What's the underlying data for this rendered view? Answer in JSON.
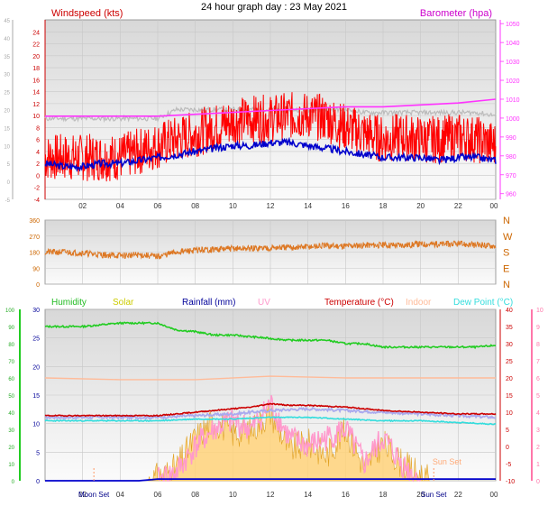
{
  "page_title": "24 hour graph day : 23 May 2021",
  "chart_data": [
    {
      "type": "line",
      "xlabel": "",
      "x_ticks": [
        "02",
        "04",
        "06",
        "08",
        "10",
        "12",
        "14",
        "16",
        "18",
        "20",
        "22",
        "00"
      ],
      "y_left_label": "Windspeed (kts)",
      "y_left_ticks": [
        "-4",
        "-2",
        "0",
        "2",
        "4",
        "6",
        "8",
        "10",
        "12",
        "14",
        "16",
        "18",
        "20",
        "22",
        "24"
      ],
      "y_left_outer_ticks": [
        "-5",
        "0",
        "5",
        "10",
        "15",
        "20",
        "25",
        "30",
        "35",
        "40",
        "45"
      ],
      "ylim_left": [
        -4,
        26
      ],
      "y_right_label": "Barometer (hpa)",
      "y_right_ticks": [
        "960",
        "970",
        "980",
        "990",
        "1000",
        "1010",
        "1020",
        "1030",
        "1040",
        "1050"
      ],
      "ylim_right": [
        957,
        1052
      ],
      "grid": true,
      "series": [
        {
          "name": "Windspeed (kts)",
          "color": "#ff0000",
          "axis": "left",
          "x": [
            0,
            1,
            2,
            3,
            4,
            5,
            6,
            7,
            8,
            9,
            10,
            11,
            12,
            13,
            14,
            15,
            16,
            17,
            18,
            19,
            20,
            21,
            22,
            23,
            24
          ],
          "values": [
            3,
            3,
            3,
            3,
            3,
            4,
            5,
            6,
            7,
            8,
            9,
            9.5,
            9.5,
            10,
            10,
            9.5,
            8,
            7,
            6,
            6.5,
            6,
            6,
            6.5,
            6,
            5
          ]
        },
        {
          "name": "",
          "color": "#bbbbbb",
          "axis": "left",
          "x": [
            0,
            1,
            2,
            3,
            4,
            5,
            6,
            7,
            8,
            9,
            10,
            11,
            12,
            13,
            14,
            15,
            16,
            17,
            18,
            19,
            20,
            21,
            22,
            23,
            24
          ],
          "values": [
            9.5,
            9.5,
            9.5,
            9.5,
            9.5,
            9.5,
            9.5,
            11,
            11,
            11,
            11,
            11,
            11,
            11,
            11,
            11,
            11,
            10.5,
            10.5,
            10.5,
            10.5,
            10.5,
            10.5,
            10.5,
            10
          ]
        },
        {
          "name": "",
          "color": "#0000cc",
          "axis": "left",
          "x": [
            0,
            1,
            2,
            3,
            4,
            5,
            6,
            7,
            8,
            9,
            10,
            11,
            12,
            13,
            14,
            15,
            16,
            17,
            18,
            19,
            20,
            21,
            22,
            23,
            24
          ],
          "values": [
            2,
            1.5,
            1.5,
            2,
            2,
            2.5,
            3,
            3.5,
            4,
            4.5,
            5,
            5,
            5.5,
            5.5,
            5,
            4.5,
            4,
            3.5,
            3,
            3,
            3,
            2.5,
            3,
            3,
            2.5
          ]
        },
        {
          "name": "Barometer (hpa)",
          "color": "#ff33ff",
          "axis": "right",
          "x": [
            0,
            2,
            4,
            6,
            8,
            10,
            12,
            14,
            16,
            18,
            20,
            22,
            24
          ],
          "values": [
            1001,
            1001,
            1001,
            1001,
            1002,
            1003,
            1004,
            1005,
            1006,
            1006,
            1007,
            1008,
            1010
          ]
        }
      ]
    },
    {
      "type": "line",
      "x_ticks": [
        "02",
        "04",
        "06",
        "08",
        "10",
        "12",
        "14",
        "16",
        "18",
        "20",
        "22",
        "00"
      ],
      "y_left_ticks": [
        "0",
        "90",
        "180",
        "270",
        "360"
      ],
      "ylim": [
        0,
        360
      ],
      "y_right_labels": [
        "N",
        "W",
        "S",
        "E",
        "N"
      ],
      "grid": true,
      "series": [
        {
          "name": "",
          "color": "#dd7722",
          "x": [
            0,
            1,
            2,
            3,
            4,
            5,
            6,
            7,
            8,
            9,
            10,
            11,
            12,
            13,
            14,
            15,
            16,
            17,
            18,
            19,
            20,
            21,
            22,
            23,
            24
          ],
          "values": [
            180,
            180,
            175,
            165,
            160,
            165,
            155,
            180,
            190,
            195,
            200,
            200,
            205,
            205,
            210,
            215,
            215,
            220,
            220,
            220,
            225,
            225,
            225,
            220,
            215
          ]
        }
      ]
    },
    {
      "type": "line",
      "x_ticks": [
        "02",
        "Moon Set",
        "04",
        "06",
        "08",
        "10",
        "12",
        "14",
        "16",
        "18",
        "20",
        "Sun Set",
        "22",
        "00"
      ],
      "legend": {
        "humidity": {
          "label": "Humidity",
          "color": "#22bb22"
        },
        "solar": {
          "label": "Solar",
          "color": "#cccc00"
        },
        "rainfall": {
          "label": "Rainfall (mm)",
          "color": "#000099"
        },
        "uv": {
          "label": "UV",
          "color": "#ff99cc"
        },
        "temperature": {
          "label": "Temperature (°C)",
          "color": "#cc0000"
        },
        "indoor": {
          "label": "Indoor",
          "color": "#ffbb99"
        },
        "dewpoint": {
          "label": "Dew Point (°C)",
          "color": "#33dddd"
        }
      },
      "annotations": [
        "Sun Set"
      ],
      "y_outer_ticks": [
        "0",
        "10",
        "20",
        "30",
        "40",
        "50",
        "60",
        "70",
        "80",
        "90",
        "100"
      ],
      "y_left_ticks": [
        "0",
        "5",
        "10",
        "15",
        "20",
        "25",
        "30"
      ],
      "ylim_left": [
        0,
        30
      ],
      "y_right_ticks": [
        "-10",
        "-5",
        "0",
        "5",
        "10",
        "15",
        "20",
        "25",
        "30",
        "35",
        "40"
      ],
      "ylim_right": [
        -10,
        40
      ],
      "y_uv_ticks": [
        "0",
        "1",
        "2",
        "3",
        "4",
        "5",
        "6",
        "7",
        "8",
        "9",
        "10"
      ],
      "grid": true,
      "series": [
        {
          "name": "Humidity",
          "color": "#22cc22",
          "axis": "percent",
          "x": [
            0,
            1,
            2,
            3,
            4,
            5,
            6,
            7,
            8,
            9,
            10,
            11,
            12,
            13,
            14,
            15,
            16,
            17,
            18,
            19,
            20,
            21,
            22,
            23,
            24
          ],
          "values": [
            90,
            90,
            90,
            91,
            92,
            92,
            92,
            88,
            87,
            85,
            85,
            84,
            83,
            82,
            82,
            82,
            80,
            80,
            78,
            78,
            78,
            78,
            78,
            78,
            79
          ]
        },
        {
          "name": "Indoor",
          "color": "#ffbb99",
          "axis": "temp",
          "x": [
            0,
            4,
            8,
            12,
            16,
            20,
            24
          ],
          "values": [
            20,
            19.5,
            19.5,
            20.5,
            20,
            20,
            20
          ]
        },
        {
          "name": "Temperature (°C)",
          "color": "#cc0000",
          "axis": "temp",
          "x": [
            0,
            2,
            4,
            6,
            8,
            10,
            11,
            12,
            13,
            14,
            16,
            18,
            20,
            22,
            24
          ],
          "values": [
            9,
            9,
            9,
            9,
            10,
            11,
            11.5,
            12.5,
            12,
            12,
            11.5,
            10.5,
            10,
            9.5,
            9.5
          ]
        },
        {
          "name": "",
          "color": "#aaaaee",
          "axis": "temp",
          "x": [
            0,
            2,
            4,
            6,
            8,
            10,
            12,
            14,
            16,
            18,
            20,
            22,
            24
          ],
          "values": [
            8.5,
            8.5,
            8.5,
            8.5,
            9,
            9.5,
            10.5,
            11,
            10.5,
            10,
            9.5,
            9,
            8.5
          ]
        },
        {
          "name": "Dew Point (°C)",
          "color": "#33dddd",
          "axis": "temp",
          "x": [
            0,
            2,
            4,
            6,
            8,
            10,
            12,
            14,
            16,
            18,
            20,
            22,
            24
          ],
          "values": [
            7.5,
            7.5,
            7.5,
            7.5,
            8,
            8,
            8.5,
            8.5,
            8,
            7.5,
            7.5,
            7,
            6.5
          ]
        },
        {
          "name": "Solar",
          "color": "#ffcc55",
          "axis": "percent",
          "x": [
            5.5,
            6,
            7,
            8,
            9,
            10,
            11,
            12,
            13,
            14,
            15,
            16,
            17,
            18,
            19,
            20,
            20.5
          ],
          "values": [
            0,
            2,
            8,
            25,
            35,
            28,
            30,
            40,
            18,
            22,
            15,
            30,
            8,
            22,
            10,
            3,
            0
          ]
        },
        {
          "name": "UV",
          "color": "#ff99cc",
          "axis": "uv",
          "x": [
            6,
            7,
            8,
            9,
            10,
            11,
            12,
            13,
            14,
            15,
            16,
            17,
            18,
            19,
            20
          ],
          "values": [
            0,
            0.5,
            2,
            3,
            3.5,
            3,
            4.5,
            2.5,
            2,
            2.5,
            3,
            1,
            2.5,
            1,
            0
          ]
        },
        {
          "name": "Rainfall (mm)",
          "color": "#0000cc",
          "axis": "left",
          "x": [
            0,
            5,
            6,
            24
          ],
          "values": [
            0,
            0,
            0.3,
            0.3
          ]
        }
      ]
    }
  ]
}
